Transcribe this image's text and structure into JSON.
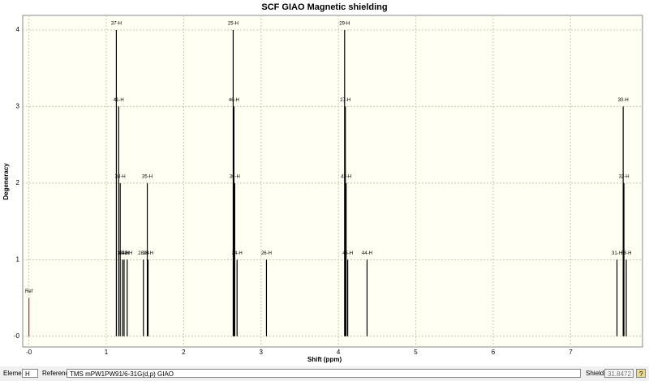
{
  "chart_data": {
    "type": "stem",
    "title": "SCF GIAO Magnetic shielding",
    "x_label": "Shift (ppm)",
    "y_label": "Degeneracy",
    "x": [
      0,
      1.13,
      1.16,
      1.18,
      1.21,
      1.23,
      1.27,
      1.48,
      1.53,
      1.54,
      2.64,
      2.65,
      2.66,
      2.69,
      3.07,
      4.08,
      4.09,
      4.1,
      4.12,
      4.37,
      7.6,
      7.68,
      7.69,
      7.72
    ],
    "values": [
      0.5,
      4,
      3,
      2,
      1,
      1,
      1,
      1,
      2,
      1,
      4,
      3,
      2,
      1,
      1,
      4,
      3,
      2,
      1,
      1,
      1,
      3,
      2,
      1
    ],
    "point_labels": [
      "Ref",
      "37-H",
      "41-H",
      "34-H",
      "33-H",
      "40-H",
      "42-H",
      "28-H",
      "35-H",
      "39-H",
      "25-H",
      "46-H",
      "36-H",
      "24-H",
      "26-H",
      "29-H",
      "27-H",
      "43-H",
      "45-H",
      "44-H",
      "31-H",
      "30-H",
      "32-H",
      "38-H"
    ],
    "colors": [
      "#d42020",
      "#000000",
      "#000000",
      "#000000",
      "#000000",
      "#000000",
      "#000000",
      "#000000",
      "#000000",
      "#000000",
      "#000000",
      "#000000",
      "#000000",
      "#000000",
      "#000000",
      "#000000",
      "#000000",
      "#000000",
      "#000000",
      "#000000",
      "#000000",
      "#000000",
      "#000000",
      "#000000"
    ],
    "xlim": [
      -0.08,
      7.93
    ],
    "ylim": [
      -0.14,
      4.19
    ],
    "xticks": [
      {
        "value": 0,
        "label": "-0"
      },
      1,
      2,
      3,
      4,
      5,
      6,
      7
    ],
    "yticks": [
      {
        "value": 0,
        "label": "-0"
      },
      1,
      2,
      3,
      4
    ],
    "grid": true
  },
  "controls": {
    "element_label": "Element:",
    "element": "H",
    "reference_label": "Reference:",
    "reference": "TMS mPW1PW91/6-31G(d,p) GIAO",
    "shielding_label": "Shielding:",
    "shielding": "31.8472",
    "help": "?"
  }
}
